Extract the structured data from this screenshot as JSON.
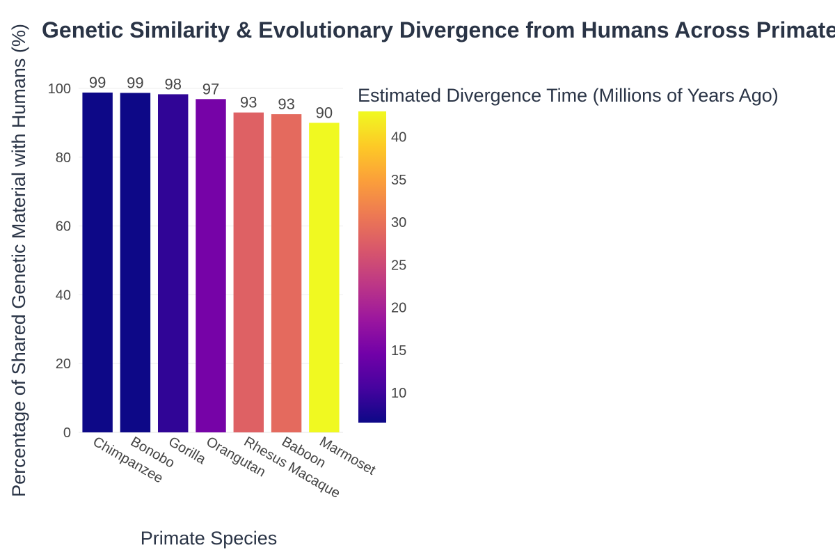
{
  "chart_data": {
    "type": "bar",
    "title": "Genetic Similarity & Evolutionary Divergence from Humans Across Primates",
    "xlabel": "Primate Species",
    "ylabel": "Percentage of Shared Genetic Material with Humans (%)",
    "categories": [
      "Chimpanzee",
      "Bonobo",
      "Gorilla",
      "Orangutan",
      "Rhesus Macaque",
      "Baboon",
      "Marmoset"
    ],
    "values": [
      98.8,
      98.7,
      98.3,
      96.9,
      93.0,
      92.5,
      90.0
    ],
    "data_labels": [
      "99",
      "99",
      "98",
      "97",
      "93",
      "93",
      "90"
    ],
    "divergence_time": [
      6.5,
      6.5,
      9,
      15,
      28,
      29,
      43
    ],
    "ylim": [
      0,
      100
    ],
    "yticks": [
      0,
      20,
      40,
      60,
      80,
      100
    ],
    "grid": true,
    "colorbar": {
      "title": "Estimated Divergence Time (Millions of Years Ago)",
      "range": [
        6.5,
        43
      ],
      "ticks": [
        10,
        15,
        20,
        25,
        30,
        35,
        40
      ],
      "colorscale": [
        "#0d0887",
        "#46039f",
        "#7201a8",
        "#9c179e",
        "#bd3786",
        "#d8576b",
        "#ed7953",
        "#fb9f3a",
        "#fdca26",
        "#f0f921"
      ]
    }
  }
}
